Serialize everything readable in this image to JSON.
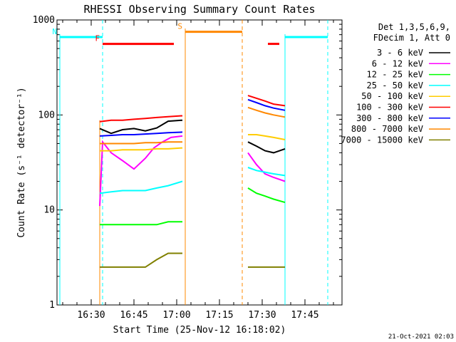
{
  "chart_data": {
    "type": "line",
    "title": "RHESSI Observing Summary Count Rates",
    "xlabel": "Start Time (25-Nov-12 16:18:02)",
    "ylabel": "Count Rate (s⁻¹ detector⁻¹)",
    "y_scale": "log",
    "xlim": [
      "16:18",
      "17:58"
    ],
    "ylim": [
      1,
      1000
    ],
    "x_ticks": [
      "16:30",
      "16:45",
      "17:00",
      "17:15",
      "17:30",
      "17:45"
    ],
    "y_ticks": [
      "1",
      "10",
      "100",
      "1000"
    ],
    "legend_header": [
      "Det 1,3,5,6,9,",
      "FDecim 1, Att 0"
    ],
    "legend_position": "right",
    "series": [
      {
        "name": "3 - 6 keV",
        "color": "#000000",
        "x": [
          "16:33",
          "16:37",
          "16:41",
          "16:45",
          "16:49",
          "16:53",
          "16:57",
          "17:02",
          "17:03",
          "17:25",
          "17:28",
          "17:31",
          "17:34",
          "17:38"
        ],
        "values": [
          72,
          64,
          70,
          72,
          68,
          73,
          86,
          88,
          null,
          52,
          47,
          42,
          40,
          44
        ]
      },
      {
        "name": "6 - 12 keV",
        "color": "#ff00ff",
        "x": [
          "16:33",
          "16:34",
          "16:37",
          "16:41",
          "16:45",
          "16:49",
          "16:52",
          "16:55",
          "16:58",
          "17:02",
          "17:03",
          "17:25",
          "17:28",
          "17:31",
          "17:34",
          "17:38"
        ],
        "values": [
          11,
          52,
          40,
          33,
          27,
          35,
          45,
          52,
          58,
          60,
          null,
          40,
          30,
          24,
          22,
          20
        ]
      },
      {
        "name": "12 - 25 keV",
        "color": "#00ff00",
        "x": [
          "16:33",
          "16:37",
          "16:41",
          "16:45",
          "16:49",
          "16:53",
          "16:57",
          "17:02",
          "17:03",
          "17:25",
          "17:28",
          "17:31",
          "17:34",
          "17:38"
        ],
        "values": [
          7,
          7,
          7,
          7,
          7,
          7,
          7.5,
          7.5,
          null,
          17,
          15,
          14,
          13,
          12
        ]
      },
      {
        "name": "25 - 50 keV",
        "color": "#00ffff",
        "x": [
          "16:33",
          "16:37",
          "16:41",
          "16:45",
          "16:49",
          "16:53",
          "16:57",
          "17:02",
          "17:03",
          "17:25",
          "17:28",
          "17:31",
          "17:34",
          "17:38"
        ],
        "values": [
          15,
          15.5,
          16,
          16,
          16,
          17,
          18,
          20,
          null,
          28,
          26,
          25,
          24,
          23
        ]
      },
      {
        "name": "50 - 100 keV",
        "color": "#ffcc00",
        "x": [
          "16:33",
          "16:37",
          "16:41",
          "16:45",
          "16:49",
          "16:53",
          "16:57",
          "17:02",
          "17:03",
          "17:25",
          "17:28",
          "17:31",
          "17:34",
          "17:38"
        ],
        "values": [
          42,
          42,
          43,
          43,
          43,
          44,
          44,
          45,
          null,
          62,
          62,
          60,
          58,
          55
        ]
      },
      {
        "name": "100 - 300 keV",
        "color": "#ff0000",
        "x": [
          "16:33",
          "16:37",
          "16:41",
          "16:45",
          "16:49",
          "16:53",
          "16:57",
          "17:02",
          "17:03",
          "17:25",
          "17:28",
          "17:31",
          "17:34",
          "17:38"
        ],
        "values": [
          85,
          88,
          88,
          90,
          92,
          94,
          96,
          98,
          null,
          160,
          150,
          140,
          130,
          125
        ]
      },
      {
        "name": "300 - 800 keV",
        "color": "#0000ff",
        "x": [
          "16:33",
          "16:37",
          "16:41",
          "16:45",
          "16:49",
          "16:53",
          "16:57",
          "17:02",
          "17:03",
          "17:25",
          "17:28",
          "17:31",
          "17:34",
          "17:38"
        ],
        "values": [
          60,
          61,
          62,
          62,
          63,
          64,
          65,
          66,
          null,
          145,
          135,
          125,
          118,
          112
        ]
      },
      {
        "name": "800 - 7000 keV",
        "color": "#ff8800",
        "x": [
          "16:33",
          "16:37",
          "16:41",
          "16:45",
          "16:49",
          "16:53",
          "16:57",
          "17:02",
          "17:03",
          "17:25",
          "17:28",
          "17:31",
          "17:34",
          "17:38"
        ],
        "values": [
          50,
          50,
          50,
          50,
          51,
          51,
          52,
          52,
          null,
          120,
          112,
          105,
          100,
          95
        ]
      },
      {
        "name": "7000 - 15000 keV",
        "color": "#808000",
        "x": [
          "16:33",
          "16:37",
          "16:41",
          "16:45",
          "16:49",
          "16:53",
          "16:57",
          "17:02",
          "17:03",
          "17:25",
          "17:28",
          "17:31",
          "17:34",
          "17:38"
        ],
        "values": [
          2.5,
          2.5,
          2.5,
          2.5,
          2.5,
          3,
          3.5,
          3.5,
          null,
          2.5,
          2.5,
          2.5,
          2.5,
          2.5
        ]
      }
    ],
    "flags": [
      {
        "label": "N",
        "name": "night",
        "color": "#00ffff",
        "x_start": "16:19",
        "x_end": "16:34",
        "level": 660,
        "dashed_x": "16:34"
      },
      {
        "label": "",
        "name": "night-2",
        "color": "#00ffff",
        "x_start": "17:38",
        "x_end": "17:53",
        "level": 660,
        "dashed_x": "17:53"
      },
      {
        "label": "F",
        "name": "flare",
        "color": "#ff0000",
        "x_start": "16:34",
        "x_end": "16:59",
        "level": 560
      },
      {
        "label": "",
        "name": "flare-2",
        "color": "#ff0000",
        "x_start": "17:32",
        "x_end": "17:36",
        "level": 560
      },
      {
        "label": "S",
        "name": "saa",
        "color": "#ff8800",
        "x_start": "17:03",
        "x_end": "17:23",
        "level": 750,
        "dashed_x": "17:23"
      }
    ]
  },
  "footer_date": "21-Oct-2021 02:03"
}
